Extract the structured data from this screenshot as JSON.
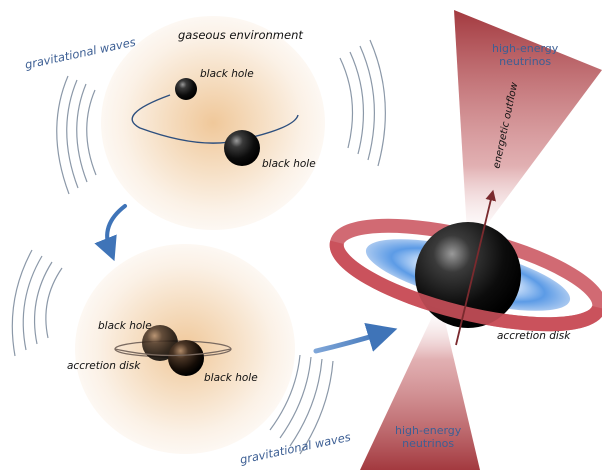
{
  "labels": {
    "gaseous_environment": "gaseous environment",
    "gravitational_waves_top": "gravitational waves",
    "gravitational_waves_bottom": "gravitational waves",
    "black_hole_1": "black hole",
    "black_hole_2": "black hole",
    "black_hole_3": "black hole",
    "black_hole_4": "black hole",
    "accretion_disk_left": "accretion disk",
    "accretion_disk_right": "accretion disk",
    "energetic_outflow": "energetic outflow",
    "neutrinos_top_line1": "high-energy",
    "neutrinos_top_line2": "neutrinos",
    "neutrinos_bottom_line1": "high-energy",
    "neutrinos_bottom_line2": "neutrinos"
  },
  "colors": {
    "label_blue": "#3d5f94",
    "label_dark": "#111111",
    "arrow_blue": "#3f74b8",
    "jet_red": "#9e2f35",
    "disk_red": "#c9505a",
    "disk_blue": "#4d8fe0"
  }
}
